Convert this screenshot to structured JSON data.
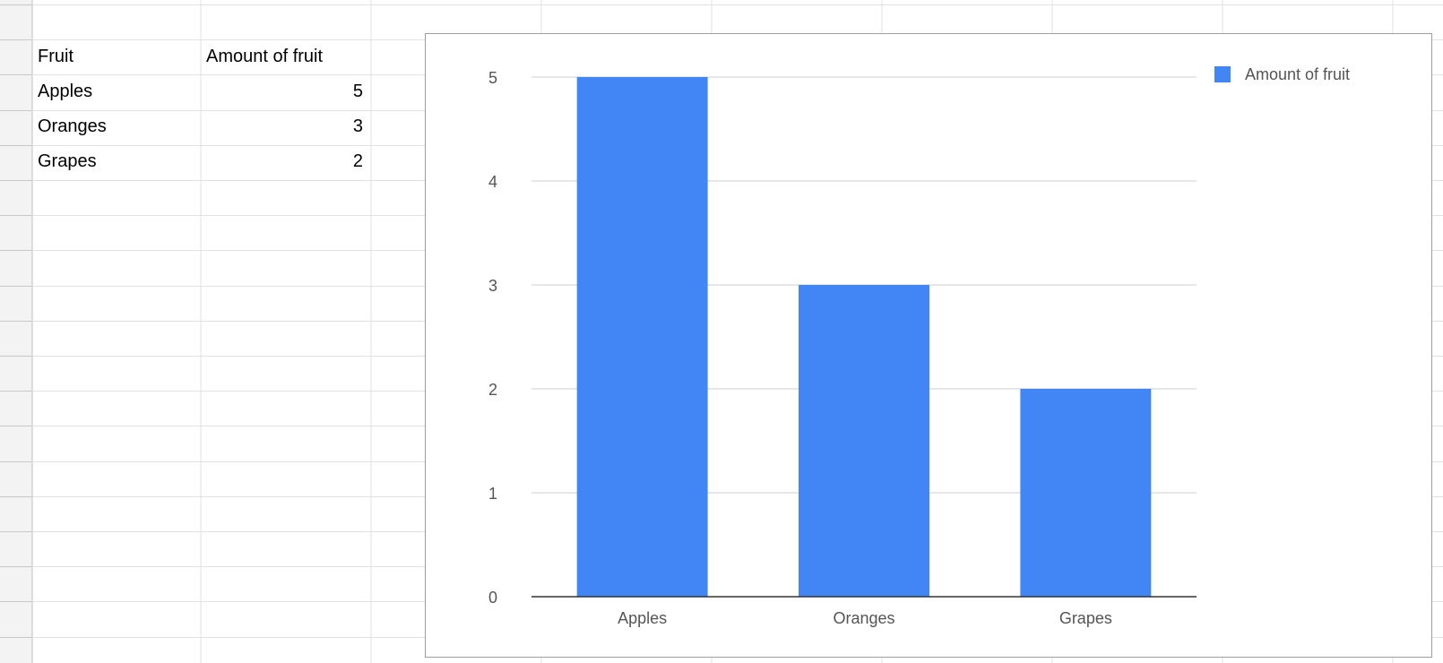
{
  "sheet": {
    "header": {
      "col_a": "Fruit",
      "col_b": "Amount of fruit"
    },
    "rows": [
      {
        "fruit": "Apples",
        "amount": "5"
      },
      {
        "fruit": "Oranges",
        "amount": "3"
      },
      {
        "fruit": "Grapes",
        "amount": "2"
      }
    ]
  },
  "chart_data": {
    "type": "bar",
    "title": "",
    "xlabel": "",
    "ylabel": "",
    "categories": [
      "Apples",
      "Oranges",
      "Grapes"
    ],
    "series": [
      {
        "name": "Amount of fruit",
        "values": [
          5,
          3,
          2
        ],
        "color": "#4285F4"
      }
    ],
    "ylim": [
      0,
      5
    ],
    "yticks": [
      "0",
      "1",
      "2",
      "3",
      "4",
      "5"
    ],
    "grid": true,
    "legend": "top-right",
    "colors": {
      "bar": "#4285F4",
      "gridline": "#cccccc",
      "axis": "#333333",
      "tick_text": "#555555"
    }
  }
}
